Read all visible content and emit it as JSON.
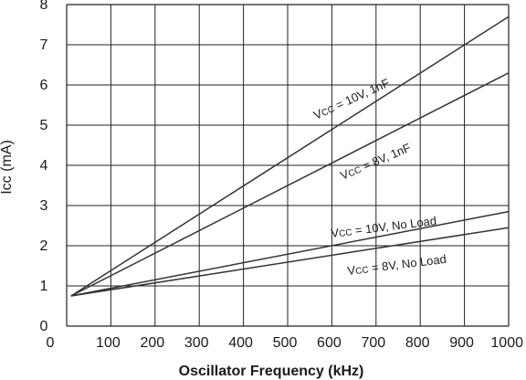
{
  "chart_data": {
    "type": "line",
    "xlabel": "Oscillator Frequency (kHz)",
    "ylabel": "Icc (mA)",
    "xlim": [
      0,
      1000
    ],
    "ylim": [
      0,
      8
    ],
    "xticks": [
      0,
      100,
      200,
      300,
      400,
      500,
      600,
      700,
      800,
      900,
      1000
    ],
    "yticks": [
      0,
      1,
      2,
      3,
      4,
      5,
      6,
      7,
      8
    ],
    "grid": true,
    "line_color": "#333333",
    "series": [
      {
        "prefix": "V",
        "sub": "CC",
        "suffix": " = 10V, 1nF",
        "x": [
          10,
          1000
        ],
        "y": [
          0.75,
          7.7
        ]
      },
      {
        "prefix": "V",
        "sub": "CC",
        "suffix": " = 8V, 1nF",
        "x": [
          10,
          1000
        ],
        "y": [
          0.75,
          6.3
        ]
      },
      {
        "prefix": "V",
        "sub": "CC",
        "suffix": " = 10V, No Load",
        "x": [
          10,
          1000
        ],
        "y": [
          0.75,
          2.85
        ]
      },
      {
        "prefix": "V",
        "sub": "CC",
        "suffix": " = 8V, No Load",
        "x": [
          10,
          1000
        ],
        "y": [
          0.75,
          2.45
        ]
      }
    ]
  }
}
